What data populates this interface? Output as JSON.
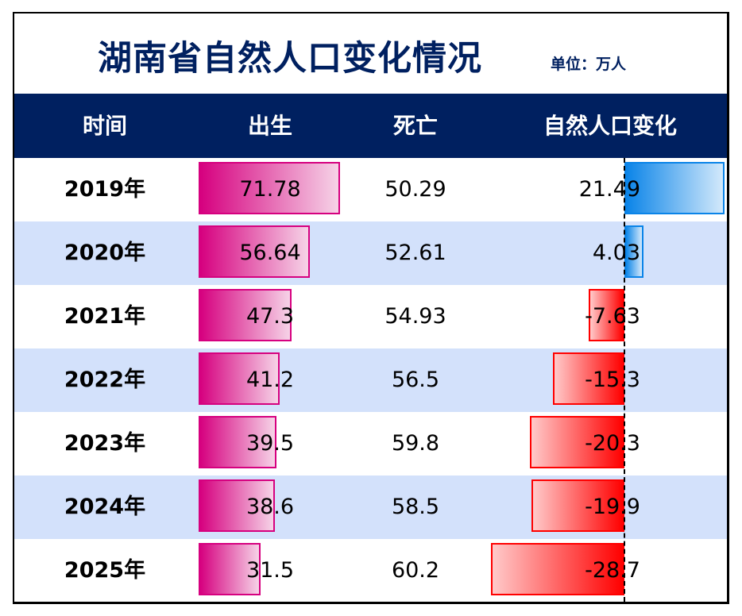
{
  "title": "湖南省自然人口变化情况",
  "unit": "单位：万人",
  "headers": [
    "时间",
    "出生",
    "死亡",
    "自然人口变化"
  ],
  "colors": {
    "header_bg": "#002060",
    "title": "#002060",
    "alt_row": "#D3E1FB",
    "birth_bar": "#D6007F",
    "positive_bar": "#0A84E8",
    "negative_bar": "#FF0000"
  },
  "chart_data": {
    "type": "table",
    "title": "湖南省自然人口变化情况",
    "columns": [
      "时间",
      "出生",
      "死亡",
      "自然人口变化"
    ],
    "rows": [
      {
        "year": "2019年",
        "birth": "71.78",
        "death": "50.29",
        "change": "21.49"
      },
      {
        "year": "2020年",
        "birth": "56.64",
        "death": "52.61",
        "change": "4.03"
      },
      {
        "year": "2021年",
        "birth": "47.3",
        "death": "54.93",
        "change": "-7.63"
      },
      {
        "year": "2022年",
        "birth": "41.2",
        "death": "56.5",
        "change": "-15.3"
      },
      {
        "year": "2023年",
        "birth": "39.5",
        "death": "59.8",
        "change": "-20.3"
      },
      {
        "year": "2024年",
        "birth": "38.6",
        "death": "58.5",
        "change": "-19.9"
      },
      {
        "year": "2025年",
        "birth": "31.5",
        "death": "60.2",
        "change": "-28.7"
      }
    ],
    "data_bars": [
      "出生",
      "自然人口变化"
    ]
  }
}
